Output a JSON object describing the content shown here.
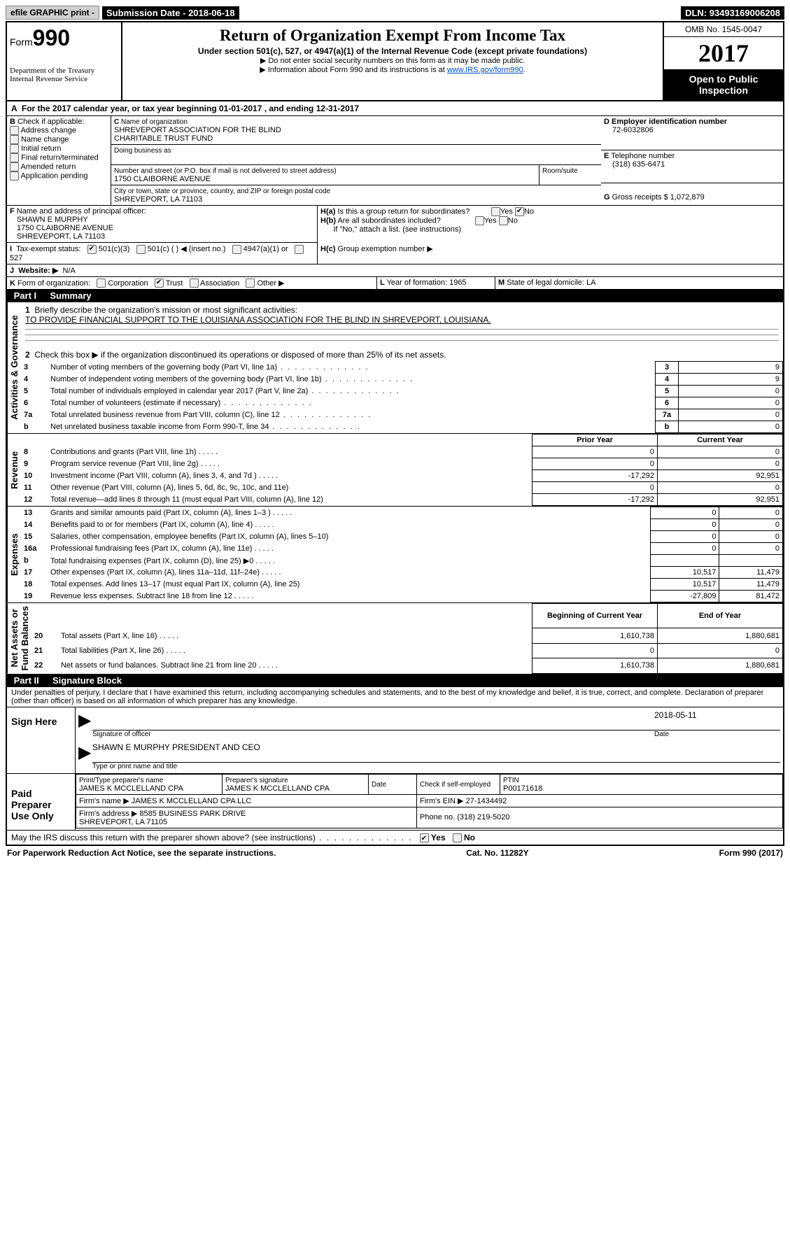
{
  "top": {
    "efile": "efile GRAPHIC print -",
    "submission_label": "Submission Date -",
    "submission_date": "2018-06-18",
    "dln_label": "DLN:",
    "dln": "93493169006208"
  },
  "header": {
    "form_prefix": "Form",
    "form_no": "990",
    "dept": "Department of the Treasury\nInternal Revenue Service",
    "title": "Return of Organization Exempt From Income Tax",
    "subtitle": "Under section 501(c), 527, or 4947(a)(1) of the Internal Revenue Code (except private foundations)",
    "note1": "▶ Do not enter social security numbers on this form as it may be made public.",
    "note2_pre": "▶ Information about Form 990 and its instructions is at ",
    "note2_link": "www.IRS.gov/form990",
    "omb": "OMB No. 1545-0047",
    "year": "2017",
    "inspect": "Open to Public Inspection"
  },
  "a": {
    "text": "For the 2017 calendar year, or tax year beginning 01-01-2017   , and ending 12-31-2017"
  },
  "b": {
    "label": "Check if applicable:",
    "items": [
      "Address change",
      "Name change",
      "Initial return",
      "Final return/terminated",
      "Amended return",
      "Application pending"
    ]
  },
  "c": {
    "name_label": "Name of organization",
    "name": "SHREVEPORT ASSOCIATION FOR THE BLIND\nCHARITABLE TRUST FUND",
    "dba_label": "Doing business as",
    "dba": "",
    "addr_label": "Number and street (or P.O. box if mail is not delivered to street address)",
    "addr": "1750 CLAIBORNE AVENUE",
    "room_label": "Room/suite",
    "city_label": "City or town, state or province, country, and ZIP or foreign postal code",
    "city": "SHREVEPORT, LA  71103"
  },
  "d": {
    "label": "Employer identification number",
    "value": "72-6032806"
  },
  "e": {
    "label": "Telephone number",
    "value": "(318) 635-6471"
  },
  "g": {
    "label": "Gross receipts $",
    "value": "1,072,879"
  },
  "f": {
    "label": "Name and address of principal officer:",
    "value": "SHAWN E MURPHY\n1750 CLAIBORNE AVENUE\nSHREVEPORT, LA  71103"
  },
  "h": {
    "a": "Is this a group return for subordinates?",
    "b": "Are all subordinates included?",
    "note": "If \"No,\" attach a list. (see instructions)",
    "c": "Group exemption number ▶"
  },
  "i": {
    "label": "Tax-exempt status:",
    "opts": [
      "501(c)(3)",
      "501(c) (   ) ◀ (insert no.)",
      "4947(a)(1) or",
      "527"
    ]
  },
  "j": {
    "label": "Website: ▶",
    "value": "N/A"
  },
  "k": {
    "label": "Form of organization:",
    "opts": [
      "Corporation",
      "Trust",
      "Association",
      "Other ▶"
    ]
  },
  "l": {
    "label": "Year of formation:",
    "value": "1965"
  },
  "m": {
    "label": "State of legal domicile:",
    "value": "LA"
  },
  "part1": {
    "title": "Summary",
    "mission_label": "Briefly describe the organization's mission or most significant activities:",
    "mission": "TO PROVIDE FINANCIAL SUPPORT TO THE LOUISIANA ASSOCIATION FOR THE BLIND IN SHREVEPORT, LOUISIANA.",
    "line2": "Check this box ▶       if the organization discontinued its operations or disposed of more than 25% of its net assets.",
    "gov_rows": [
      {
        "n": "3",
        "d": "Number of voting members of the governing body (Part VI, line 1a)",
        "v": "9"
      },
      {
        "n": "4",
        "d": "Number of independent voting members of the governing body (Part VI, line 1b)",
        "v": "9"
      },
      {
        "n": "5",
        "d": "Total number of individuals employed in calendar year 2017 (Part V, line 2a)",
        "v": "0"
      },
      {
        "n": "6",
        "d": "Total number of volunteers (estimate if necessary)",
        "v": "0"
      },
      {
        "n": "7a",
        "d": "Total unrelated business revenue from Part VIII, column (C), line 12",
        "v": "0"
      },
      {
        "n": "b",
        "d": "Net unrelated business taxable income from Form 990-T, line 34",
        "v": "0"
      }
    ],
    "col_prior": "Prior Year",
    "col_current": "Current Year",
    "rev_rows": [
      {
        "n": "8",
        "d": "Contributions and grants (Part VIII, line 1h)",
        "p": "0",
        "c": "0"
      },
      {
        "n": "9",
        "d": "Program service revenue (Part VIII, line 2g)",
        "p": "0",
        "c": "0"
      },
      {
        "n": "10",
        "d": "Investment income (Part VIII, column (A), lines 3, 4, and 7d )",
        "p": "-17,292",
        "c": "92,951"
      },
      {
        "n": "11",
        "d": "Other revenue (Part VIII, column (A), lines 5, 6d, 8c, 9c, 10c, and 11e)",
        "p": "0",
        "c": "0"
      },
      {
        "n": "12",
        "d": "Total revenue—add lines 8 through 11 (must equal Part VIII, column (A), line 12)",
        "p": "-17,292",
        "c": "92,951"
      }
    ],
    "exp_rows": [
      {
        "n": "13",
        "d": "Grants and similar amounts paid (Part IX, column (A), lines 1–3 )",
        "p": "0",
        "c": "0"
      },
      {
        "n": "14",
        "d": "Benefits paid to or for members (Part IX, column (A), line 4)",
        "p": "0",
        "c": "0"
      },
      {
        "n": "15",
        "d": "Salaries, other compensation, employee benefits (Part IX, column (A), lines 5–10)",
        "p": "0",
        "c": "0"
      },
      {
        "n": "16a",
        "d": "Professional fundraising fees (Part IX, column (A), line 11e)",
        "p": "0",
        "c": "0"
      },
      {
        "n": "b",
        "d": "Total fundraising expenses (Part IX, column (D), line 25) ▶0",
        "p": "",
        "c": "",
        "gray": true
      },
      {
        "n": "17",
        "d": "Other expenses (Part IX, column (A), lines 11a–11d, 11f–24e)",
        "p": "10,517",
        "c": "11,479"
      },
      {
        "n": "18",
        "d": "Total expenses. Add lines 13–17 (must equal Part IX, column (A), line 25)",
        "p": "10,517",
        "c": "11,479"
      },
      {
        "n": "19",
        "d": "Revenue less expenses. Subtract line 18 from line 12",
        "p": "-27,809",
        "c": "81,472"
      }
    ],
    "col_begin": "Beginning of Current Year",
    "col_end": "End of Year",
    "net_rows": [
      {
        "n": "20",
        "d": "Total assets (Part X, line 16)",
        "p": "1,610,738",
        "c": "1,880,681"
      },
      {
        "n": "21",
        "d": "Total liabilities (Part X, line 26)",
        "p": "0",
        "c": "0"
      },
      {
        "n": "22",
        "d": "Net assets or fund balances. Subtract line 21 from line 20",
        "p": "1,610,738",
        "c": "1,880,681"
      }
    ]
  },
  "groups": {
    "activities": "Activities & Governance",
    "revenue": "Revenue",
    "expenses": "Expenses",
    "net": "Net Assets or\nFund Balances"
  },
  "part2": {
    "title": "Signature Block",
    "perjury": "Under penalties of perjury, I declare that I have examined this return, including accompanying schedules and statements, and to the best of my knowledge and belief, it is true, correct, and complete. Declaration of preparer (other than officer) is based on all information of which preparer has any knowledge.",
    "sign_here": "Sign Here",
    "sig_officer_label": "Signature of officer",
    "sig_date": "2018-05-11",
    "sig_name": "SHAWN E MURPHY PRESIDENT AND CEO",
    "sig_name_label": "Type or print name and title",
    "paid": "Paid Preparer Use Only",
    "prep_name_label": "Print/Type preparer's name",
    "prep_name": "JAMES K MCCLELLAND CPA",
    "prep_sig_label": "Preparer's signature",
    "prep_sig": "JAMES K MCCLELLAND CPA",
    "prep_date_label": "Date",
    "self_emp": "Check        if self-employed",
    "ptin_label": "PTIN",
    "ptin": "P00171618",
    "firm_name_label": "Firm's name    ▶",
    "firm_name": "JAMES K MCCLELLAND CPA LLC",
    "firm_ein_label": "Firm's EIN ▶",
    "firm_ein": "27-1434492",
    "firm_addr_label": "Firm's address ▶",
    "firm_addr": "8585 BUSINESS PARK DRIVE\nSHREVEPORT, LA  71105",
    "firm_phone_label": "Phone no.",
    "firm_phone": "(318) 219-5020",
    "discuss": "May the IRS discuss this return with the preparer shown above? (see instructions)"
  },
  "footer": {
    "pra": "For Paperwork Reduction Act Notice, see the separate instructions.",
    "cat": "Cat. No. 11282Y",
    "form": "Form 990 (2017)"
  }
}
